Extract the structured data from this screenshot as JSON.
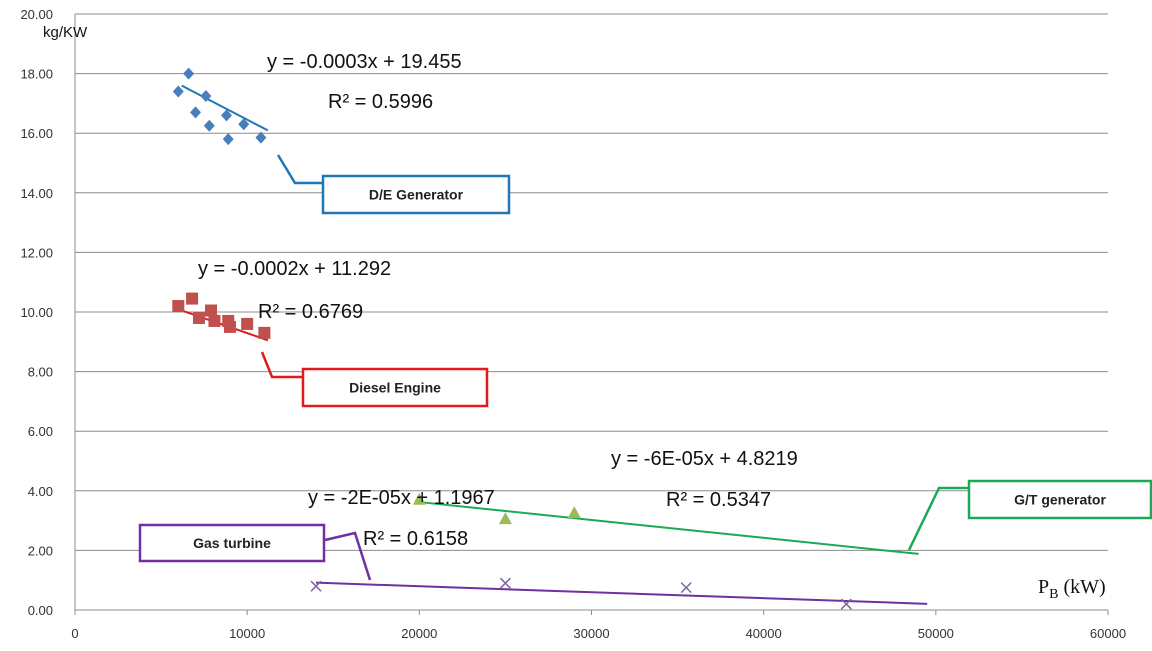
{
  "chart_data": {
    "type": "scatter",
    "title": "",
    "ylabel": "kg/KW",
    "xlabel_main": "P",
    "xlabel_sub": "B",
    "xlabel_unit": " (kW)",
    "xlim": [
      0,
      60000
    ],
    "ylim": [
      0,
      20
    ],
    "x_ticks": [
      0,
      10000,
      20000,
      30000,
      40000,
      50000,
      60000
    ],
    "x_tick_labels": [
      "0",
      "10000",
      "20000",
      "30000",
      "40000",
      "50000",
      "60000"
    ],
    "y_ticks": [
      0,
      2,
      4,
      6,
      8,
      10,
      12,
      14,
      16,
      18,
      20
    ],
    "y_tick_labels": [
      "0.00",
      "2.00",
      "4.00",
      "6.00",
      "8.00",
      "10.00",
      "12.00",
      "14.00",
      "16.00",
      "18.00",
      "20.00"
    ],
    "grid": "horizontal",
    "series": [
      {
        "name": "D/E Generator",
        "marker": "diamond",
        "color": "#4a7ebb",
        "label_color": "#1f77b4",
        "points": [
          [
            6000,
            17.4
          ],
          [
            6600,
            18.0
          ],
          [
            7000,
            16.7
          ],
          [
            7600,
            17.25
          ],
          [
            7800,
            16.25
          ],
          [
            8800,
            16.6
          ],
          [
            8900,
            15.8
          ],
          [
            9800,
            16.3
          ],
          [
            10800,
            15.85
          ]
        ],
        "trend": {
          "x": [
            6200,
            11200
          ],
          "equation": "y = -0.0003x + 19.455",
          "r2": "R² = 0.5996"
        }
      },
      {
        "name": "Diesel Engine",
        "marker": "square",
        "color": "#c0504d",
        "label_color": "#e31a1c",
        "points": [
          [
            6000,
            10.2
          ],
          [
            6800,
            10.45
          ],
          [
            7200,
            9.8
          ],
          [
            7900,
            10.05
          ],
          [
            8100,
            9.7
          ],
          [
            8900,
            9.7
          ],
          [
            9000,
            9.5
          ],
          [
            10000,
            9.6
          ],
          [
            11000,
            9.3
          ]
        ],
        "trend": {
          "x": [
            6000,
            11200
          ],
          "equation": "y = -0.0002x + 11.292",
          "r2": "R² = 0.6769"
        }
      },
      {
        "name": "G/T generator",
        "marker": "triangle",
        "color": "#9bbb59",
        "label_color": "#1aaa55",
        "points": [
          [
            20000,
            3.7
          ],
          [
            25000,
            3.05
          ],
          [
            29000,
            3.25
          ]
        ],
        "trend": {
          "x": [
            20000,
            49000
          ],
          "equation": "y = -6E-05x + 4.8219",
          "r2": "R² = 0.5347"
        }
      },
      {
        "name": "Gas turbine",
        "marker": "x",
        "color": "#8064a2",
        "label_color": "#7030a0",
        "points": [
          [
            14000,
            0.8
          ],
          [
            25000,
            0.9
          ],
          [
            35500,
            0.75
          ],
          [
            44800,
            0.2
          ]
        ],
        "trend": {
          "x": [
            14000,
            49500
          ],
          "equation": "y = -2E-05x + 1.1967",
          "r2": "R² = 0.6158"
        }
      }
    ]
  }
}
